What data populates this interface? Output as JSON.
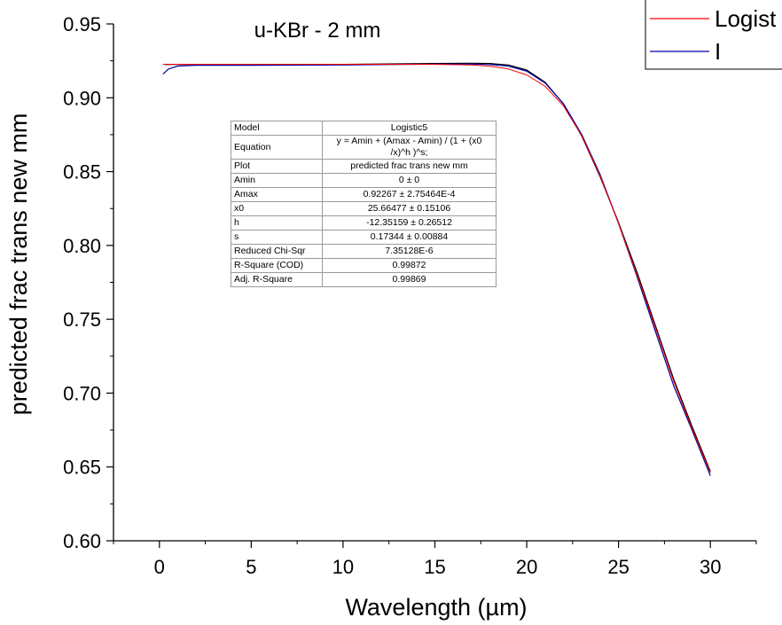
{
  "chart_data": {
    "type": "line",
    "title": "u-KBr - 2 mm",
    "xlabel": "Wavelength (µm)",
    "ylabel": "predicted frac trans new mm",
    "xlim": [
      -2.5,
      32.5
    ],
    "ylim": [
      0.6,
      0.95
    ],
    "x_ticks": [
      0,
      5,
      10,
      15,
      20,
      25,
      30
    ],
    "x_tick_labels": [
      "0",
      "5",
      "10",
      "15",
      "20",
      "25",
      "30"
    ],
    "y_ticks": [
      0.6,
      0.65,
      0.7,
      0.75,
      0.8,
      0.85,
      0.9,
      0.95
    ],
    "y_tick_labels": [
      "0.60",
      "0.65",
      "0.70",
      "0.75",
      "0.80",
      "0.85",
      "0.90",
      "0.95"
    ],
    "grid": false,
    "legend_placement": "top-right",
    "series": [
      {
        "name": "Logistic5",
        "color": "#ff0000",
        "x": [
          0.2,
          5,
          10,
          15,
          17,
          18,
          19,
          20,
          21,
          22,
          23,
          24,
          25,
          26,
          27,
          28,
          29,
          30
        ],
        "y": [
          0.9227,
          0.9227,
          0.9227,
          0.9226,
          0.9222,
          0.9214,
          0.9195,
          0.9155,
          0.9078,
          0.8945,
          0.8742,
          0.8472,
          0.8148,
          0.78,
          0.7445,
          0.708,
          0.676,
          0.646
        ]
      },
      {
        "name": "I",
        "color": "#0000aa",
        "x": [
          0.2,
          0.5,
          1,
          2,
          5,
          10,
          15,
          17,
          18,
          19,
          20,
          21,
          22,
          23,
          24,
          25,
          26,
          27,
          28,
          29,
          30
        ],
        "y": [
          0.916,
          0.9195,
          0.9215,
          0.922,
          0.922,
          0.9222,
          0.9228,
          0.9228,
          0.9225,
          0.9215,
          0.918,
          0.91,
          0.896,
          0.875,
          0.848,
          0.815,
          0.779,
          0.742,
          0.705,
          0.675,
          0.644
        ]
      },
      {
        "name": "",
        "color": "#000000",
        "x": [
          0.3,
          0.8,
          2,
          5,
          10,
          15,
          17,
          18,
          19,
          20,
          21,
          22,
          23,
          24,
          25,
          26,
          27,
          28,
          29,
          30
        ],
        "y": [
          0.9225,
          0.9226,
          0.9226,
          0.9225,
          0.9226,
          0.9232,
          0.9234,
          0.9232,
          0.9222,
          0.9188,
          0.9105,
          0.8958,
          0.874,
          0.8465,
          0.8155,
          0.782,
          0.746,
          0.7095,
          0.6775,
          0.647
        ]
      }
    ],
    "legend": [
      {
        "label": "Logist",
        "color": "#ff0000"
      },
      {
        "label": "I",
        "color": "#0000aa"
      }
    ],
    "fit_table": [
      {
        "key": "Model",
        "value": "Logistic5"
      },
      {
        "key": "Equation",
        "value": "y = Amin + (Amax - Amin) / (1 + (x0 /x)^h )^s;"
      },
      {
        "key": "Plot",
        "value": "predicted frac trans new mm"
      },
      {
        "key": "Amin",
        "value": "0 ± 0"
      },
      {
        "key": "Amax",
        "value": "0.92267 ± 2.75464E-4"
      },
      {
        "key": "x0",
        "value": "25.66477 ± 0.15106"
      },
      {
        "key": "h",
        "value": "-12.35159 ± 0.26512"
      },
      {
        "key": "s",
        "value": "0.17344 ± 0.00884"
      },
      {
        "key": "Reduced Chi-Sqr",
        "value": "7.35128E-6"
      },
      {
        "key": "R-Square (COD)",
        "value": "0.99872"
      },
      {
        "key": "Adj. R-Square",
        "value": "0.99869"
      }
    ]
  }
}
